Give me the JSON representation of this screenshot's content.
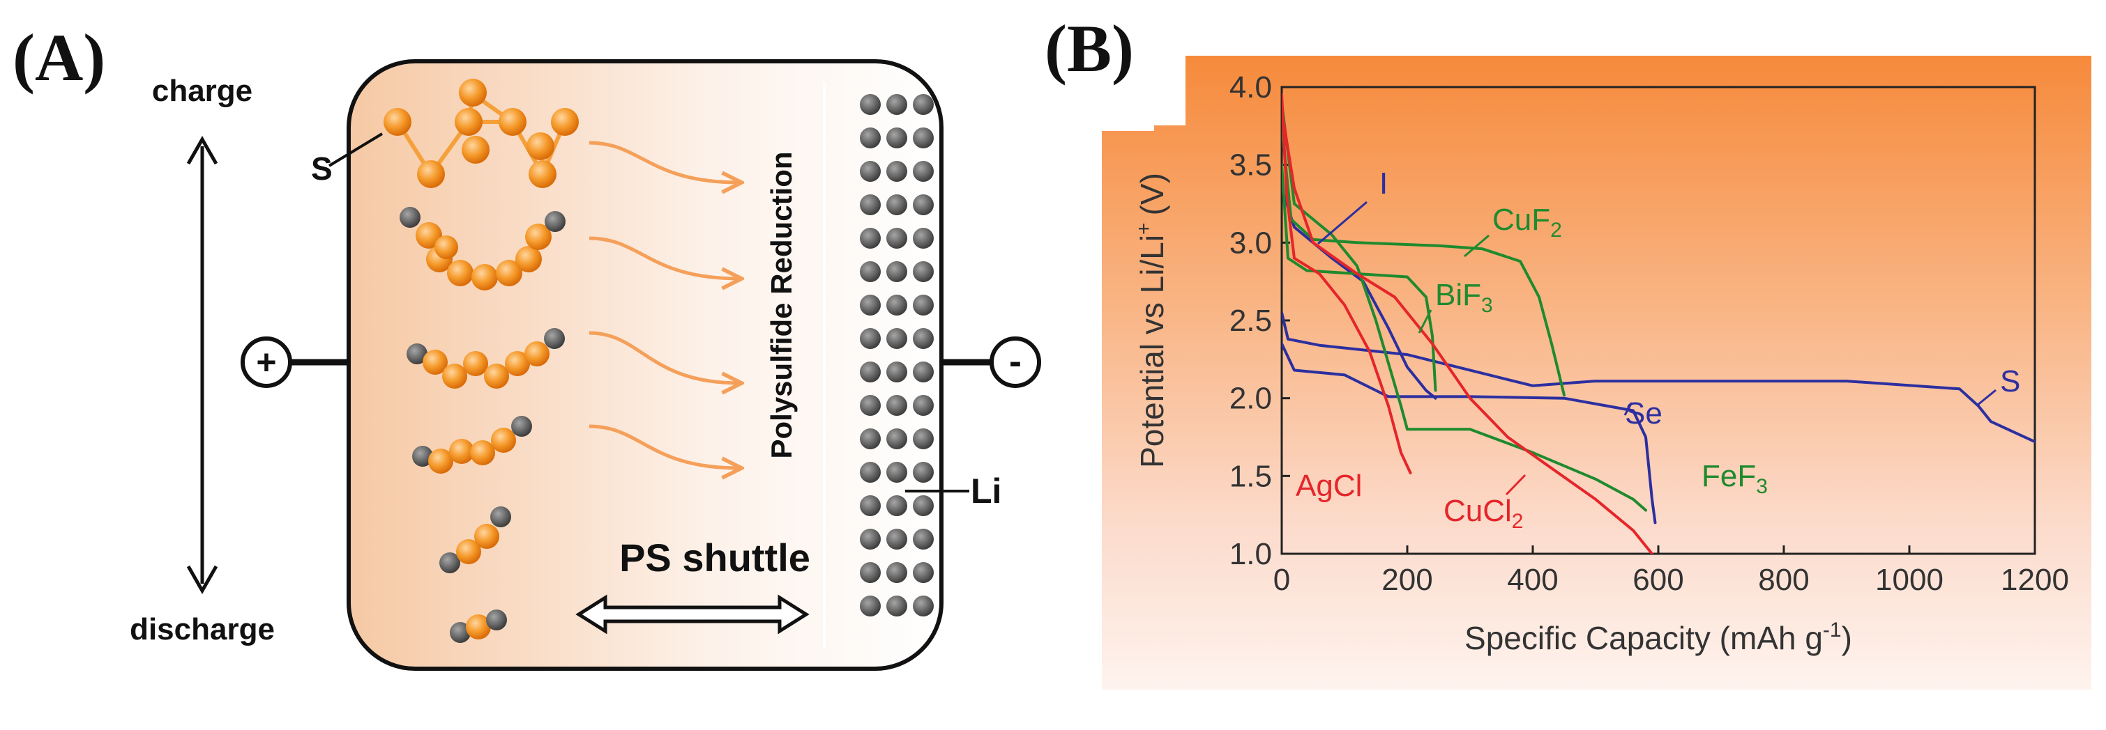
{
  "panel_a": {
    "label": "(A)",
    "charge_label": "charge",
    "discharge_label": "discharge",
    "sulfur_label": "S",
    "lithium_label": "Li",
    "positive_symbol": "+",
    "negative_symbol": "-",
    "reduction_label": "Polysulfide Reduction",
    "shuttle_label": "PS shuttle"
  },
  "panel_b": {
    "label": "(B)",
    "ylabel_main": "Potential vs Li/Li",
    "ylabel_sup": "+",
    "ylabel_unit": "(V)",
    "xlabel_main": "Specific Capacity (mAh g",
    "xlabel_sup": "-1",
    "xlabel_end": ")",
    "series_labels": {
      "I": "I",
      "CuF": "CuF",
      "CuF_sub": "2",
      "BiF": "BiF",
      "BiF_sub": "3",
      "S": "S",
      "Se": "Se",
      "FeF": "FeF",
      "FeF_sub": "3",
      "AgCl": "AgCl",
      "CuCl": "CuCl",
      "CuCl_sub": "2"
    },
    "colors": {
      "blue": "#2c2fa0",
      "green": "#1f8a2e",
      "red": "#e5252a",
      "accent": "#f28a3c"
    }
  },
  "chart_data": {
    "type": "line",
    "title": "",
    "xlabel": "Specific Capacity (mAh g-1)",
    "ylabel": "Potential vs Li/Li+ (V)",
    "xlim": [
      0,
      1200
    ],
    "ylim": [
      1.0,
      4.0
    ],
    "xticks": [
      0,
      200,
      400,
      600,
      800,
      1000,
      1200
    ],
    "yticks": [
      1.0,
      1.5,
      2.0,
      2.5,
      3.0,
      3.5,
      4.0
    ],
    "series": [
      {
        "name": "S",
        "color": "#2c2fa0",
        "points": [
          [
            0,
            2.55
          ],
          [
            10,
            2.38
          ],
          [
            60,
            2.34
          ],
          [
            200,
            2.28
          ],
          [
            330,
            2.15
          ],
          [
            400,
            2.08
          ],
          [
            500,
            2.11
          ],
          [
            700,
            2.11
          ],
          [
            900,
            2.11
          ],
          [
            1080,
            2.06
          ],
          [
            1110,
            1.95
          ],
          [
            1130,
            1.85
          ],
          [
            1200,
            1.72
          ]
        ]
      },
      {
        "name": "Se",
        "color": "#2c2fa0",
        "points": [
          [
            0,
            2.35
          ],
          [
            20,
            2.18
          ],
          [
            100,
            2.15
          ],
          [
            150,
            2.05
          ],
          [
            170,
            2.01
          ],
          [
            300,
            2.01
          ],
          [
            450,
            2.0
          ],
          [
            560,
            1.92
          ],
          [
            580,
            1.75
          ],
          [
            590,
            1.35
          ],
          [
            595,
            1.2
          ]
        ]
      },
      {
        "name": "I",
        "color": "#2c2fa0",
        "points": [
          [
            0,
            3.35
          ],
          [
            20,
            3.1
          ],
          [
            80,
            2.9
          ],
          [
            130,
            2.75
          ],
          [
            170,
            2.45
          ],
          [
            200,
            2.2
          ],
          [
            230,
            2.05
          ],
          [
            245,
            2.0
          ]
        ]
      },
      {
        "name": "CuF2",
        "color": "#1f8a2e",
        "points": [
          [
            0,
            3.75
          ],
          [
            15,
            3.15
          ],
          [
            50,
            3.02
          ],
          [
            120,
            3.0
          ],
          [
            250,
            2.98
          ],
          [
            320,
            2.96
          ],
          [
            380,
            2.88
          ],
          [
            410,
            2.65
          ],
          [
            430,
            2.35
          ],
          [
            450,
            2.02
          ]
        ]
      },
      {
        "name": "BiF3",
        "color": "#1f8a2e",
        "points": [
          [
            0,
            3.5
          ],
          [
            10,
            2.9
          ],
          [
            40,
            2.82
          ],
          [
            120,
            2.8
          ],
          [
            200,
            2.78
          ],
          [
            230,
            2.65
          ],
          [
            240,
            2.4
          ],
          [
            245,
            2.05
          ]
        ]
      },
      {
        "name": "FeF3",
        "color": "#1f8a2e",
        "points": [
          [
            0,
            3.9
          ],
          [
            20,
            3.25
          ],
          [
            80,
            3.05
          ],
          [
            120,
            2.85
          ],
          [
            150,
            2.5
          ],
          [
            190,
            1.95
          ],
          [
            200,
            1.8
          ],
          [
            300,
            1.8
          ],
          [
            400,
            1.65
          ],
          [
            500,
            1.48
          ],
          [
            560,
            1.35
          ],
          [
            580,
            1.28
          ]
        ]
      },
      {
        "name": "AgCl",
        "color": "#e5252a",
        "points": [
          [
            0,
            3.95
          ],
          [
            8,
            3.3
          ],
          [
            20,
            2.9
          ],
          [
            60,
            2.8
          ],
          [
            100,
            2.6
          ],
          [
            140,
            2.3
          ],
          [
            170,
            1.95
          ],
          [
            190,
            1.65
          ],
          [
            205,
            1.52
          ]
        ]
      },
      {
        "name": "CuCl2",
        "color": "#e5252a",
        "points": [
          [
            0,
            3.85
          ],
          [
            20,
            3.35
          ],
          [
            50,
            3.0
          ],
          [
            120,
            2.8
          ],
          [
            180,
            2.65
          ],
          [
            240,
            2.35
          ],
          [
            300,
            2.0
          ],
          [
            360,
            1.75
          ],
          [
            430,
            1.55
          ],
          [
            500,
            1.35
          ],
          [
            560,
            1.15
          ],
          [
            590,
            1.0
          ]
        ]
      }
    ],
    "annotations": [
      {
        "text": "I",
        "x": 165,
        "y": 3.58
      },
      {
        "text": "CuF2",
        "x": 345,
        "y": 3.05
      },
      {
        "text": "BiF3",
        "x": 240,
        "y": 2.75
      },
      {
        "text": "S",
        "x": 1138,
        "y": 2.06
      },
      {
        "text": "Se",
        "x": 475,
        "y": 1.92
      },
      {
        "text": "FeF3",
        "x": 590,
        "y": 1.38
      },
      {
        "text": "AgCl",
        "x": 15,
        "y": 1.5
      },
      {
        "text": "CuCl2",
        "x": 255,
        "y": 1.2
      }
    ]
  }
}
